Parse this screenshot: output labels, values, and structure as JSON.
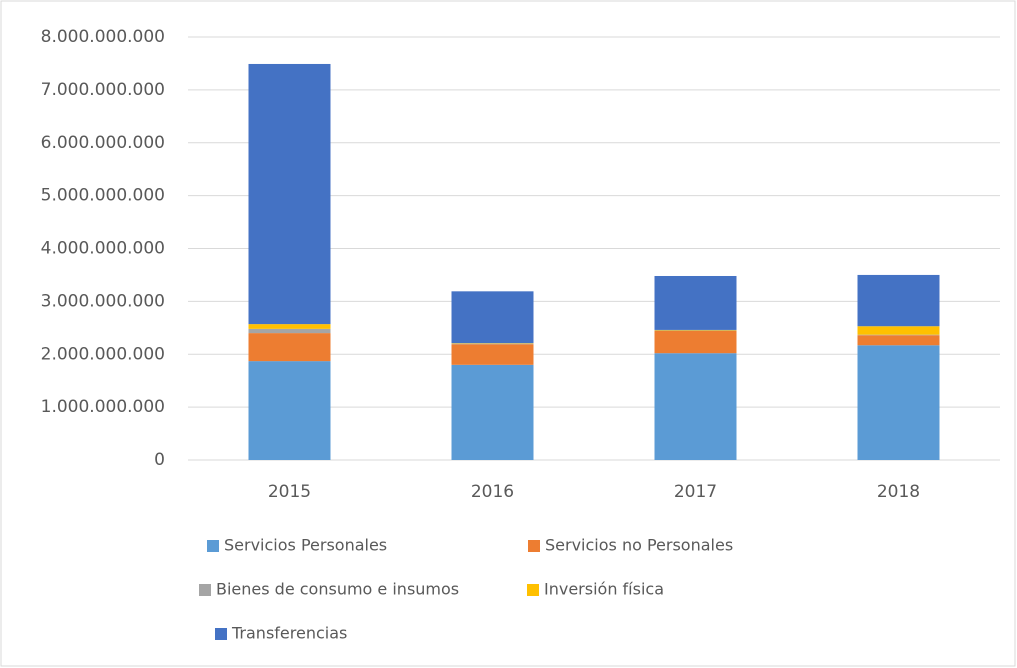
{
  "chart_data": {
    "type": "stacked_bar",
    "categories": [
      "2015",
      "2016",
      "2017",
      "2018"
    ],
    "series": [
      {
        "name": "Servicios Personales",
        "color": "#5b9bd5",
        "values": [
          1870000000,
          1800000000,
          2020000000,
          2170000000
        ]
      },
      {
        "name": "Servicios no Personales",
        "color": "#ed7d31",
        "values": [
          530000000,
          390000000,
          420000000,
          190000000
        ]
      },
      {
        "name": "Bienes de consumo e insumos",
        "color": "#a5a5a5",
        "values": [
          80000000,
          10000000,
          10000000,
          10000000
        ]
      },
      {
        "name": "Inversión  física",
        "color": "#ffc000",
        "values": [
          90000000,
          10000000,
          10000000,
          160000000
        ]
      },
      {
        "name": "Transferencias",
        "color": "#4472c4",
        "values": [
          4920000000,
          980000000,
          1020000000,
          970000000
        ]
      }
    ],
    "ylim": [
      0,
      8000000000
    ],
    "yticks": [
      0,
      {
        "value": 1000000000,
        "label": "1.000.000.000"
      },
      {
        "value": 2000000000,
        "label": "2.000.000.000"
      },
      {
        "value": 3000000000,
        "label": "3.000.000.000"
      },
      {
        "value": 4000000000,
        "label": "4.000.000.000"
      },
      {
        "value": 5000000000,
        "label": "5.000.000.000"
      },
      {
        "value": 6000000000,
        "label": "6.000.000.000"
      },
      {
        "value": 7000000000,
        "label": "7.000.000.000"
      },
      {
        "value": 8000000000,
        "label": "8.000.000.000"
      }
    ],
    "grid": true,
    "legend": "bottom"
  }
}
